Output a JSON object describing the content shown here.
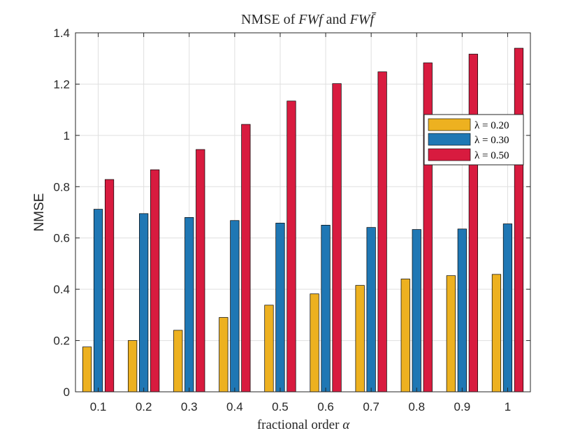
{
  "chart_data": {
    "type": "bar",
    "title": {
      "prefix": "NMSE of ",
      "term1": "FWf",
      "conj": " and ",
      "term2": "FWf̄"
    },
    "xlabel": {
      "text": "fractional order ",
      "symbol": "α"
    },
    "ylabel": "NMSE",
    "categories": [
      "0.1",
      "0.2",
      "0.3",
      "0.4",
      "0.5",
      "0.6",
      "0.7",
      "0.8",
      "0.9",
      "1"
    ],
    "ylim": [
      0,
      1.4
    ],
    "yticks": [
      "0",
      "0.2",
      "0.4",
      "0.6",
      "0.8",
      "1",
      "1.2",
      "1.4"
    ],
    "grid": true,
    "legend_position": "right, upper-middle",
    "series": [
      {
        "name": "λ = 0.20",
        "color": "#EDB120",
        "values": [
          0.175,
          0.2,
          0.24,
          0.29,
          0.338,
          0.382,
          0.415,
          0.44,
          0.453,
          0.458
        ]
      },
      {
        "name": "λ = 0.30",
        "color": "#1F77B4",
        "values": [
          0.712,
          0.695,
          0.68,
          0.668,
          0.658,
          0.65,
          0.641,
          0.633,
          0.635,
          0.655
        ]
      },
      {
        "name": "λ = 0.50",
        "color": "#D81B3F",
        "values": [
          0.828,
          0.866,
          0.945,
          1.043,
          1.134,
          1.202,
          1.248,
          1.283,
          1.317,
          1.34
        ]
      }
    ]
  }
}
